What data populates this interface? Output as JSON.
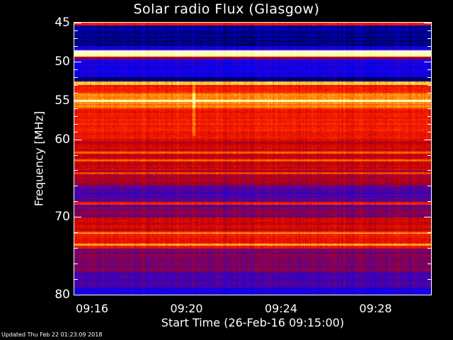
{
  "chart_data": {
    "type": "heatmap",
    "title": "Solar radio Flux (Glasgow)",
    "xlabel": "Start Time (26-Feb-16 09:15:00)",
    "ylabel": "Frequency [MHz]",
    "x_unit": "minutes after 09:00",
    "xlim": [
      15.25,
      30.35
    ],
    "ylim": [
      80,
      45
    ],
    "x_ticks": [
      {
        "value": 16,
        "label": "09:16"
      },
      {
        "value": 20,
        "label": "09:20"
      },
      {
        "value": 24,
        "label": "09:24"
      },
      {
        "value": 28,
        "label": "09:28"
      }
    ],
    "y_ticks": [
      {
        "value": 45,
        "label": "45"
      },
      {
        "value": 50,
        "label": "50"
      },
      {
        "value": 55,
        "label": "55"
      },
      {
        "value": 60,
        "label": "60"
      },
      {
        "value": 70,
        "label": "70"
      },
      {
        "value": 80,
        "label": "80"
      }
    ],
    "colormap": [
      "#000000",
      "#000060",
      "#0000ff",
      "#5000a0",
      "#c00000",
      "#ff2000",
      "#ff8000",
      "#ffff60",
      "#ffffff"
    ],
    "intensity_bands": [
      {
        "from": 45.0,
        "to": 45.3,
        "level": 0.62
      },
      {
        "from": 45.3,
        "to": 48.0,
        "level": 0.16
      },
      {
        "from": 48.0,
        "to": 48.5,
        "level": 0.3
      },
      {
        "from": 48.5,
        "to": 49.3,
        "level": 0.95
      },
      {
        "from": 49.3,
        "to": 49.7,
        "level": 0.45
      },
      {
        "from": 49.7,
        "to": 52.0,
        "level": 0.28
      },
      {
        "from": 52.0,
        "to": 52.5,
        "level": 0.14
      },
      {
        "from": 52.5,
        "to": 53.0,
        "level": 0.82
      },
      {
        "from": 53.0,
        "to": 54.0,
        "level": 0.6
      },
      {
        "from": 54.0,
        "to": 56.0,
        "level": 0.74
      },
      {
        "from": 56.0,
        "to": 60.0,
        "level": 0.6
      },
      {
        "from": 60.0,
        "to": 64.0,
        "level": 0.52
      },
      {
        "from": 64.0,
        "to": 66.0,
        "level": 0.47
      },
      {
        "from": 66.0,
        "to": 68.0,
        "level": 0.37
      },
      {
        "from": 68.0,
        "to": 70.0,
        "level": 0.42
      },
      {
        "from": 70.0,
        "to": 72.0,
        "level": 0.52
      },
      {
        "from": 72.0,
        "to": 74.0,
        "level": 0.58
      },
      {
        "from": 74.0,
        "to": 77.0,
        "level": 0.42
      },
      {
        "from": 77.0,
        "to": 79.0,
        "level": 0.36
      },
      {
        "from": 79.0,
        "to": 80.0,
        "level": 0.3
      }
    ],
    "bright_lines_mhz": [
      55.0,
      61.7,
      62.7,
      64.3,
      68.2,
      72.0,
      73.5
    ],
    "burst": {
      "time": 20.3,
      "from": 53.0,
      "to": 59.5
    }
  },
  "footer": "Updated Thu Feb 22 01:23:09 2018"
}
